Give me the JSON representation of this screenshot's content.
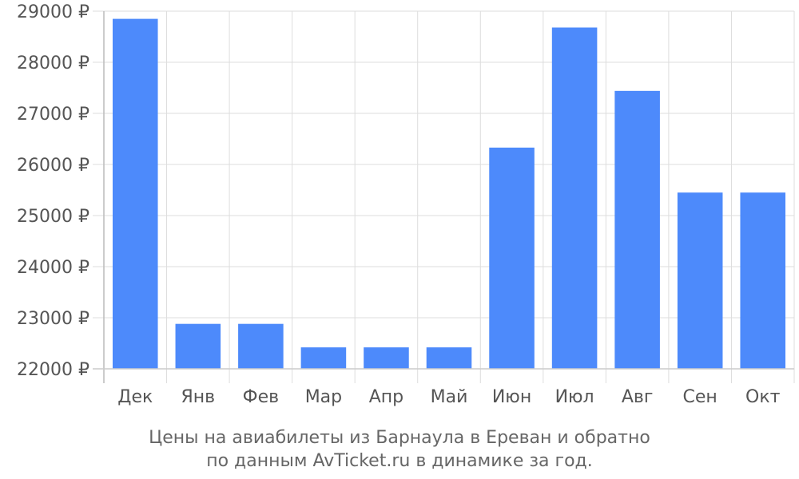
{
  "chart_data": {
    "type": "bar",
    "categories": [
      "Дек",
      "Янв",
      "Фев",
      "Мар",
      "Апр",
      "Май",
      "Июн",
      "Июл",
      "Авг",
      "Сен",
      "Окт"
    ],
    "values": [
      28850,
      22880,
      22880,
      22420,
      22420,
      22420,
      26330,
      28680,
      27440,
      25450,
      25450
    ],
    "ylim": [
      22000,
      29000
    ],
    "yticks": [
      22000,
      23000,
      24000,
      25000,
      26000,
      27000,
      28000,
      29000
    ],
    "ytick_labels": [
      "22000 ₽",
      "23000 ₽",
      "24000 ₽",
      "25000 ₽",
      "26000 ₽",
      "27000 ₽",
      "28000 ₽",
      "29000 ₽"
    ],
    "caption_line1": "Цены на авиабилеты из Барнаула в Ереван и обратно",
    "caption_line2": "по данным AvTicket.ru в динамике за год.",
    "bar_color": "#4d8afb",
    "grid": true
  }
}
